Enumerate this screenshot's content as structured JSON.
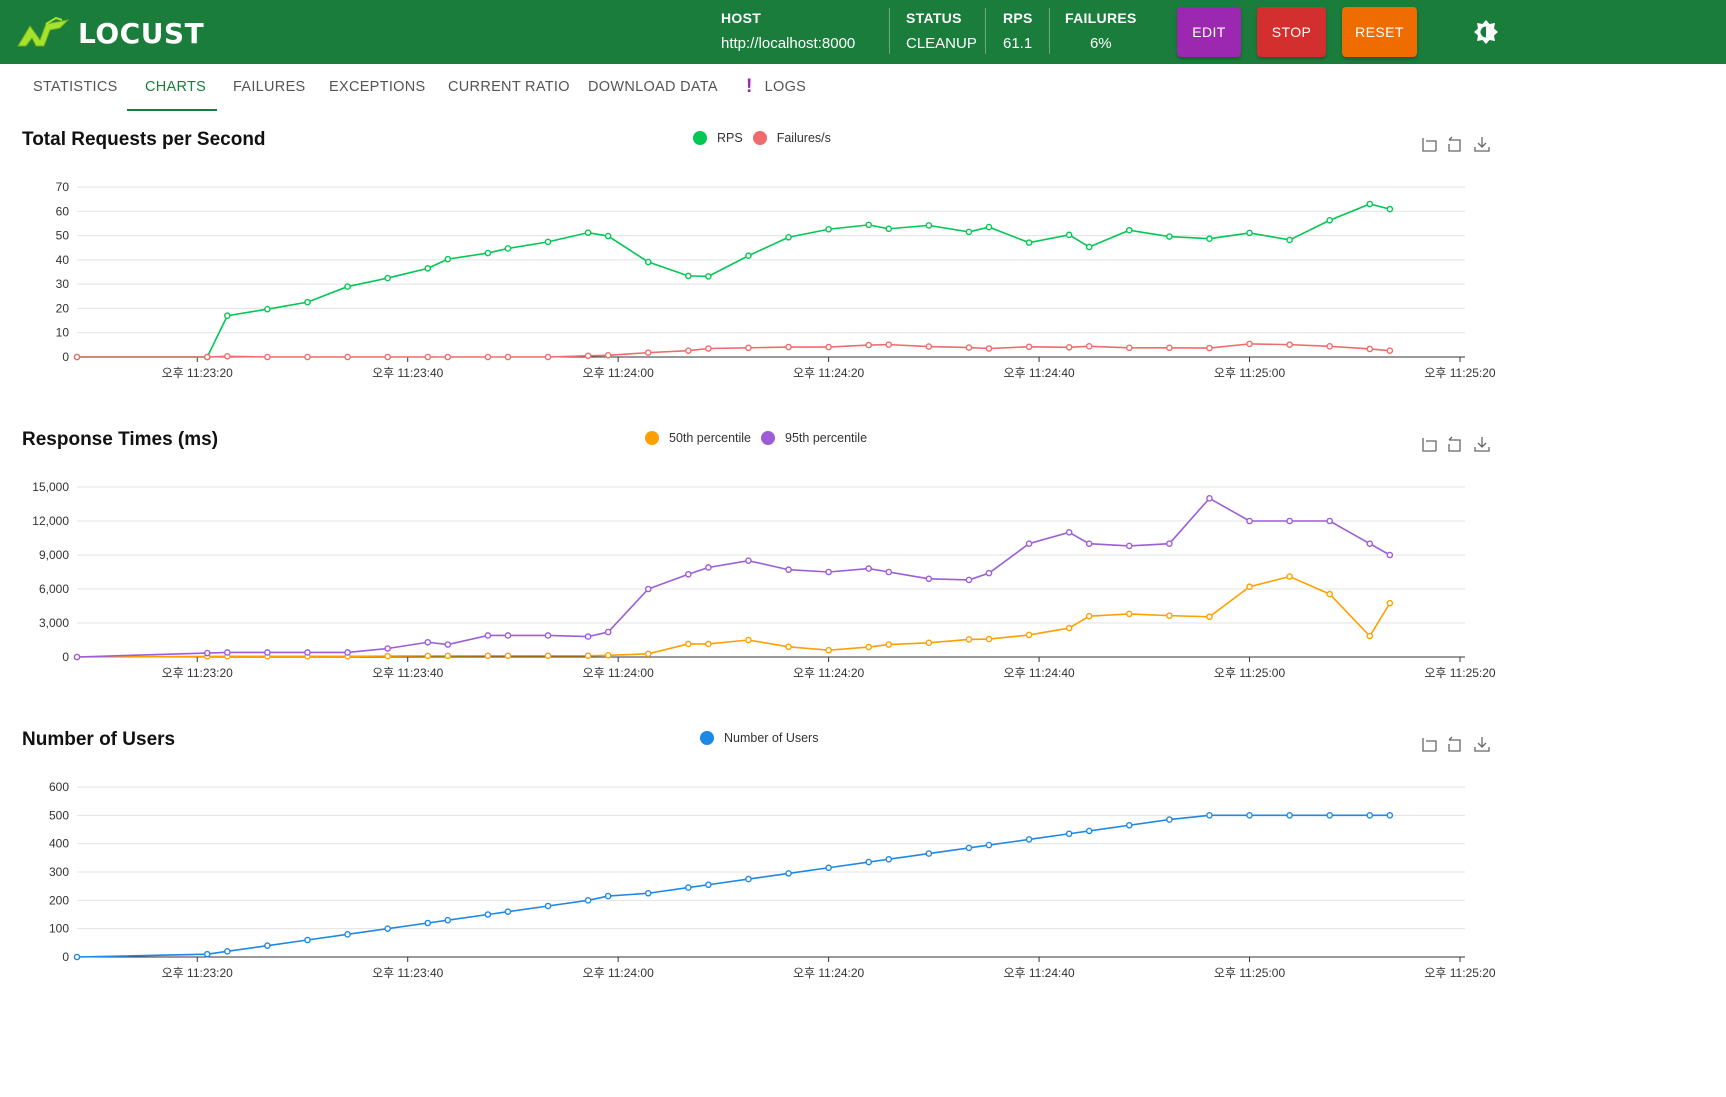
{
  "app": {
    "name": "LOCUST"
  },
  "header": {
    "host_label": "HOST",
    "host_value": "http://localhost:8000",
    "status_label": "STATUS",
    "status_value": "CLEANUP",
    "rps_label": "RPS",
    "rps_value": "61.1",
    "failures_label": "FAILURES",
    "failures_value": "6%",
    "edit_label": "EDIT",
    "stop_label": "STOP",
    "reset_label": "RESET"
  },
  "tabs": [
    {
      "label": "STATISTICS"
    },
    {
      "label": "CHARTS"
    },
    {
      "label": "FAILURES"
    },
    {
      "label": "EXCEPTIONS"
    },
    {
      "label": "CURRENT RATIO"
    },
    {
      "label": "DOWNLOAD DATA"
    },
    {
      "label": "LOGS"
    }
  ],
  "active_tab": "CHARTS",
  "colors": {
    "header": "#1b7d3c",
    "edit": "#9c27b0",
    "stop": "#d32f2f",
    "reset": "#ef6c00"
  },
  "x_ticks": [
    "오후 11:23:20",
    "오후 11:23:40",
    "오후 11:24:00",
    "오후 11:24:20",
    "오후 11:24:40",
    "오후 11:25:00",
    "오후 11:25:20"
  ],
  "chart_data": [
    {
      "type": "line",
      "title": "Total Requests per Second",
      "yticks": [
        "0",
        "10",
        "20",
        "30",
        "40",
        "50",
        "60",
        "70"
      ],
      "ylim": [
        0,
        70
      ],
      "x": [
        0,
        13,
        15,
        19,
        23,
        27,
        31,
        35,
        37,
        41,
        43,
        47,
        51,
        53,
        57,
        61,
        63,
        67,
        71,
        75,
        79,
        81,
        85,
        89,
        91,
        95,
        99,
        101,
        105,
        109,
        113,
        117,
        121,
        125,
        129,
        131
      ],
      "series": [
        {
          "name": "RPS",
          "color": "#00c853",
          "values": [
            0,
            0,
            17,
            19.7,
            22.6,
            29,
            32.5,
            36.5,
            40.3,
            42.8,
            44.7,
            47.4,
            51.2,
            49.8,
            39.1,
            33.4,
            33.2,
            41.7,
            49.3,
            52.6,
            54.4,
            52.8,
            54.2,
            51.5,
            53.5,
            47.1,
            50.3,
            45.3,
            52.2,
            49.6,
            48.7,
            51.1,
            48.2,
            56.3,
            63,
            60.9
          ]
        },
        {
          "name": "Failures/s",
          "color": "#f06b6b",
          "values": [
            0,
            0,
            0.3,
            0,
            0,
            0,
            0,
            0,
            0,
            0,
            0,
            0,
            0.5,
            0.7,
            1.8,
            2.6,
            3.5,
            3.8,
            4.1,
            4.1,
            4.9,
            5.1,
            4.3,
            3.9,
            3.5,
            4.2,
            4.0,
            4.4,
            3.8,
            3.8,
            3.7,
            5.4,
            5.1,
            4.4,
            3.3,
            2.6
          ]
        }
      ]
    },
    {
      "type": "line",
      "title": "Response Times (ms)",
      "yticks": [
        "0",
        "3,000",
        "6,000",
        "9,000",
        "12,000",
        "15,000"
      ],
      "ylim": [
        0,
        15000
      ],
      "x": [
        0,
        13,
        15,
        19,
        23,
        27,
        31,
        35,
        37,
        41,
        43,
        47,
        51,
        53,
        57,
        61,
        63,
        67,
        71,
        75,
        79,
        81,
        85,
        89,
        91,
        95,
        99,
        101,
        105,
        109,
        113,
        117,
        121,
        125,
        129,
        131
      ],
      "series": [
        {
          "name": "50th percentile",
          "color": "#ffa000",
          "values": [
            0,
            50,
            60,
            60,
            60,
            60,
            80,
            100,
            100,
            110,
            110,
            110,
            110,
            150,
            280,
            1150,
            1150,
            1500,
            900,
            600,
            880,
            1100,
            1250,
            1550,
            1580,
            1950,
            2550,
            3600,
            3800,
            3650,
            3550,
            6200,
            7100,
            5550,
            1850,
            4750
          ]
        },
        {
          "name": "95th percentile",
          "color": "#9c5dd6",
          "values": [
            0,
            350,
            400,
            400,
            400,
            400,
            750,
            1300,
            1100,
            1900,
            1900,
            1900,
            1800,
            2200,
            6000,
            7300,
            7900,
            8500,
            7700,
            7500,
            7800,
            7500,
            6900,
            6800,
            7400,
            10000,
            11000,
            10000,
            9800,
            10000,
            14000,
            12000,
            12000,
            12000,
            10000,
            9000
          ]
        }
      ]
    },
    {
      "type": "line",
      "title": "Number of Users",
      "yticks": [
        "0",
        "100",
        "200",
        "300",
        "400",
        "500",
        "600"
      ],
      "ylim": [
        0,
        600
      ],
      "x": [
        0,
        13,
        15,
        19,
        23,
        27,
        31,
        35,
        37,
        41,
        43,
        47,
        51,
        53,
        57,
        61,
        63,
        67,
        71,
        75,
        79,
        81,
        85,
        89,
        91,
        95,
        99,
        101,
        105,
        109,
        113,
        117,
        121,
        125,
        129,
        131
      ],
      "series": [
        {
          "name": "Number of Users",
          "color": "#1e88e5",
          "values": [
            0,
            10,
            20,
            40,
            60,
            80,
            100,
            120,
            130,
            150,
            160,
            180,
            200,
            215,
            225,
            245,
            255,
            275,
            295,
            315,
            335,
            345,
            365,
            385,
            395,
            415,
            435,
            445,
            465,
            485,
            500,
            500,
            500,
            500,
            500,
            500
          ]
        }
      ]
    }
  ]
}
